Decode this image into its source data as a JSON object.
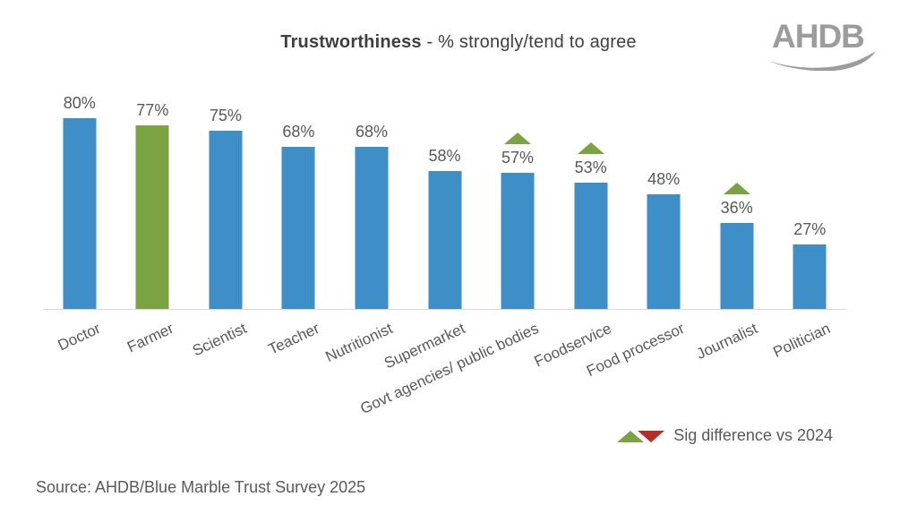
{
  "title": {
    "bold": "Trustworthiness",
    "rest": " - % strongly/tend to agree"
  },
  "logo": {
    "text": "AHDB"
  },
  "chart_data": {
    "type": "bar",
    "title": "Trustworthiness - % strongly/tend to agree",
    "categories": [
      "Doctor",
      "Farmer",
      "Scientist",
      "Teacher",
      "Nutritionist",
      "Supermarket",
      "Govt agencies/ public bodies",
      "Foodservice",
      "Food processor",
      "Journalist",
      "Politician"
    ],
    "values": [
      80,
      77,
      75,
      68,
      68,
      58,
      57,
      53,
      48,
      36,
      27
    ],
    "value_suffix": "%",
    "data_labels": "value above each bar",
    "sig_increase_vs_2024": [
      false,
      false,
      false,
      false,
      false,
      false,
      true,
      true,
      false,
      true,
      false
    ],
    "highlight_index": 1,
    "bar_color": "#3e8ec8",
    "highlight_color": "#7ba342",
    "triangle_up_color": "#7ba342",
    "xlabel": "",
    "ylabel": "",
    "ylim": [
      0,
      100
    ],
    "grid": false,
    "legend_position": "bottom-right"
  },
  "legend": {
    "label": "Sig difference vs 2024",
    "up_color": "#7ba342",
    "down_color": "#b92d28"
  },
  "source": {
    "text": "Source: AHDB/Blue Marble Trust Survey 2025"
  },
  "colors": {
    "title_text": "#3f3f3f",
    "label_text": "#595959",
    "axis_line": "#d9d9d9",
    "logo_gray": "#9c9c9c"
  }
}
